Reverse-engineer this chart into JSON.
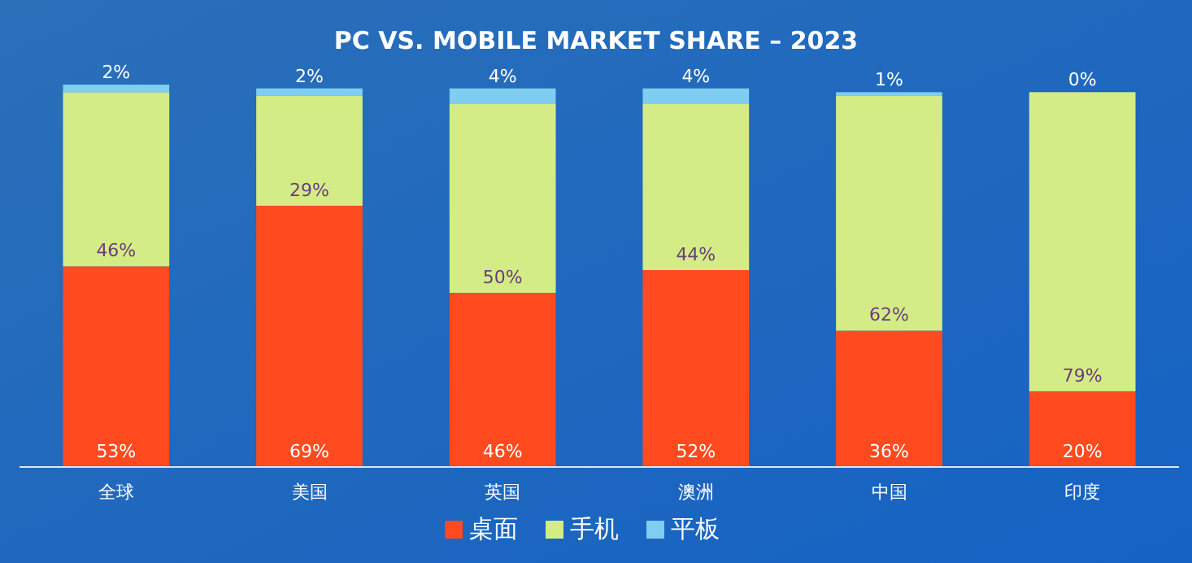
{
  "chart_data": {
    "type": "bar",
    "title": "PC VS. MOBILE MARKET SHARE – 2023",
    "stacked": true,
    "legend": "bottom",
    "categories": [
      "全球",
      "美国",
      "英国",
      "澳洲",
      "中国",
      "印度"
    ],
    "series": [
      {
        "name": "桌面",
        "color": "#ff4a1f",
        "values": [
          53,
          69,
          46,
          52,
          36,
          20
        ],
        "value_labels": [
          "53%",
          "69%",
          "46%",
          "52%",
          "36%",
          "20%"
        ]
      },
      {
        "name": "手机",
        "color": "#d3ec85",
        "values": [
          46,
          29,
          50,
          44,
          62,
          79
        ],
        "value_labels": [
          "46%",
          "29%",
          "50%",
          "44%",
          "62%",
          "79%"
        ]
      },
      {
        "name": "平板",
        "color": "#7fcdf0",
        "values": [
          2,
          2,
          4,
          4,
          1,
          0
        ],
        "value_labels": [
          "2%",
          "2%",
          "4%",
          "4%",
          "1%",
          "0%"
        ]
      }
    ]
  }
}
